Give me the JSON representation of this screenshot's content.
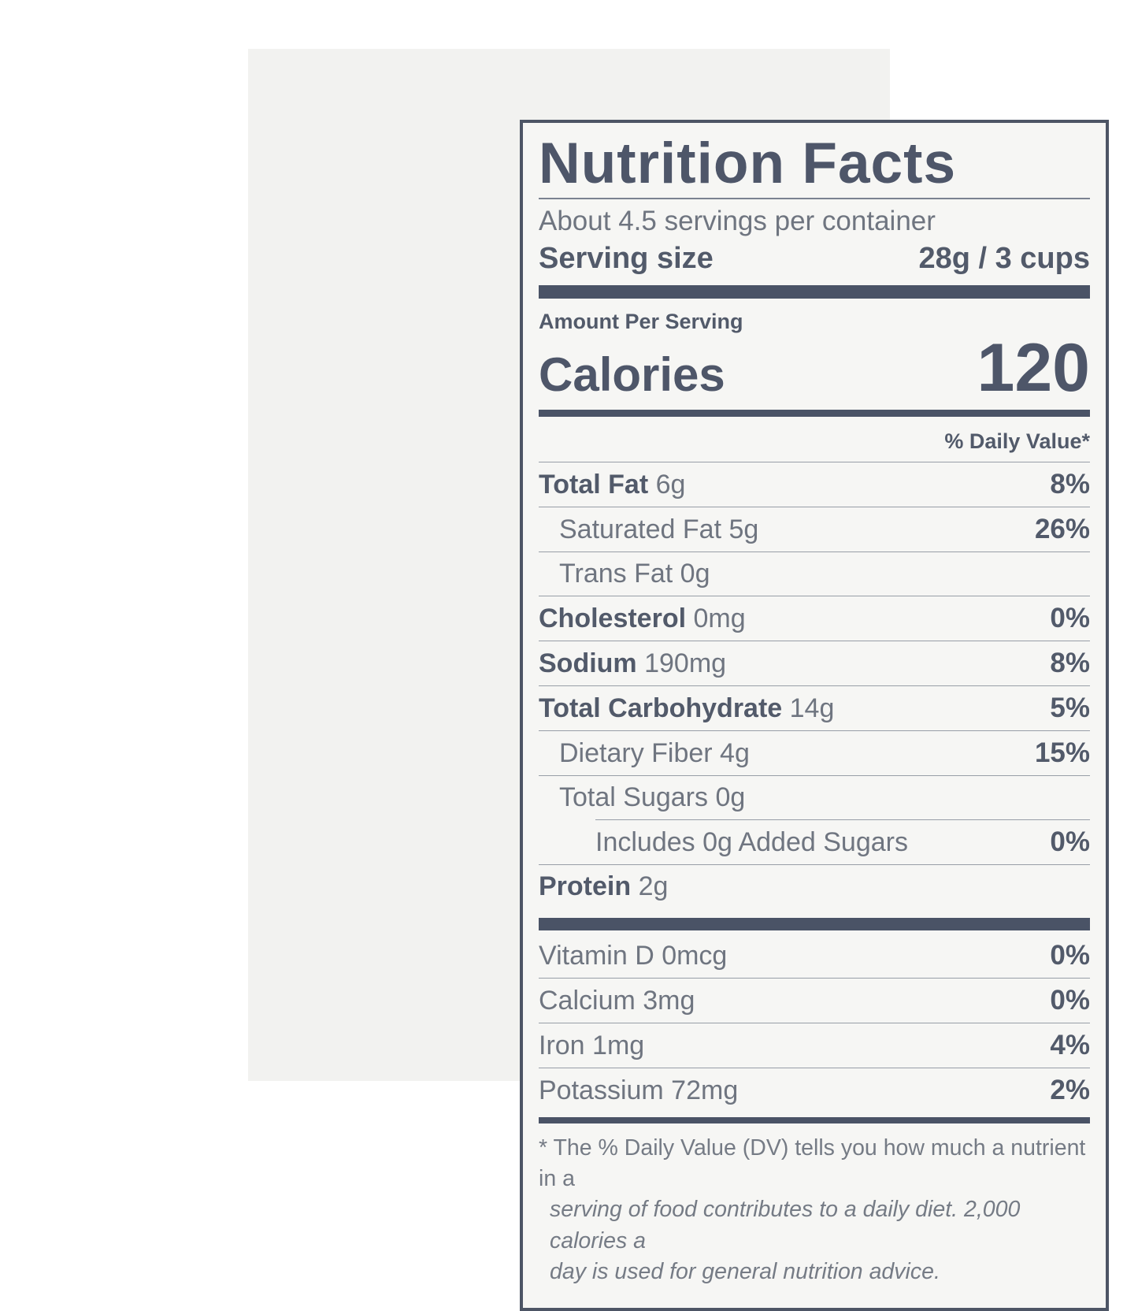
{
  "colors": {
    "border": "#4d5565",
    "bar": "#4a5366",
    "hairline": "#989ea7",
    "text_bold": "#525a6a",
    "text_regular": "#6f7580",
    "title": "#4e5669",
    "label_background": "#f6f6f4",
    "photo_background": "#f2f2f0",
    "page_background": "#ffffff"
  },
  "label": {
    "title": "Nutrition Facts",
    "servings_per_container": "About 4.5 servings per container",
    "serving_size_label": "Serving size",
    "serving_size_value": "28g / 3 cups",
    "amount_per_serving": "Amount Per Serving",
    "calories_label": "Calories",
    "calories_value": "120",
    "daily_value_header": "% Daily Value*",
    "nutrient_rows": [
      {
        "name": "Total Fat",
        "amount": "6g",
        "dv": "8%",
        "bold": true,
        "indent": 0
      },
      {
        "name": "Saturated Fat",
        "amount": "5g",
        "dv": "26%",
        "bold": false,
        "indent": 1
      },
      {
        "name": "Trans Fat",
        "amount": "0g",
        "dv": "",
        "bold": false,
        "indent": 1
      },
      {
        "name": "Cholesterol",
        "amount": "0mg",
        "dv": "0%",
        "bold": true,
        "indent": 0
      },
      {
        "name": "Sodium",
        "amount": "190mg",
        "dv": "8%",
        "bold": true,
        "indent": 0
      },
      {
        "name": "Total Carbohydrate",
        "amount": "14g",
        "dv": "5%",
        "bold": true,
        "indent": 0
      },
      {
        "name": "Dietary Fiber",
        "amount": "4g",
        "dv": "15%",
        "bold": false,
        "indent": 1
      },
      {
        "name": "Total Sugars",
        "amount": "0g",
        "dv": "",
        "bold": false,
        "indent": 1
      },
      {
        "name": "Includes 0g Added Sugars",
        "amount": "",
        "dv": "0%",
        "bold": false,
        "indent": 2,
        "partial_rule": true
      },
      {
        "name": "Protein",
        "amount": "2g",
        "dv": "",
        "bold": true,
        "indent": 0
      }
    ],
    "micronutrient_rows": [
      {
        "name": "Vitamin D",
        "amount": "0mcg",
        "dv": "0%"
      },
      {
        "name": "Calcium",
        "amount": "3mg",
        "dv": "0%"
      },
      {
        "name": "Iron",
        "amount": "1mg",
        "dv": "4%"
      },
      {
        "name": "Potassium",
        "amount": "72mg",
        "dv": "2%"
      }
    ],
    "footnote_lines": [
      {
        "text": "* The % Daily Value (DV) tells you how much a nutrient in a",
        "italic": false
      },
      {
        "text": "serving of food contributes to a daily diet. 2,000 calories a",
        "italic": true
      },
      {
        "text": "day is used for general nutrition advice.",
        "italic": true
      }
    ]
  }
}
